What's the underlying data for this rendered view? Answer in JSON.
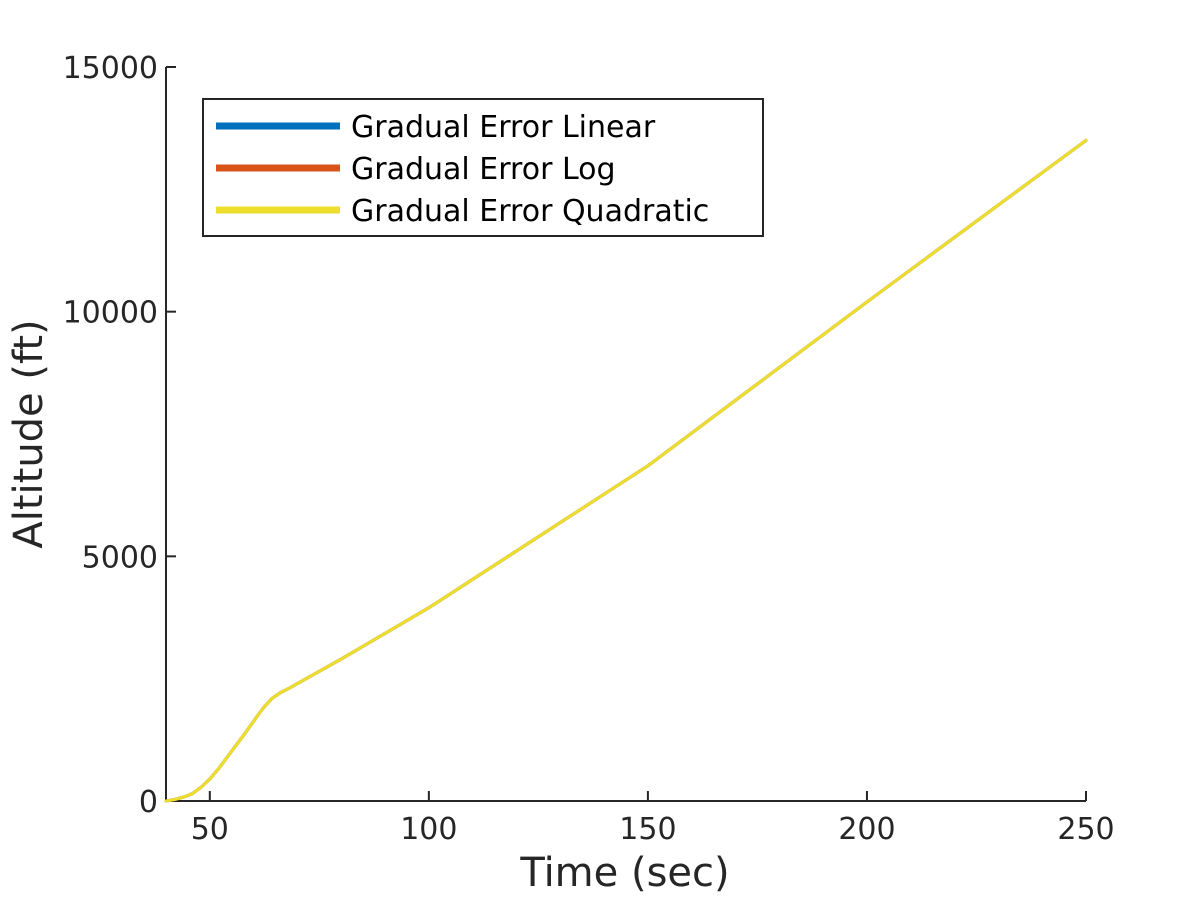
{
  "chart_data": {
    "type": "line",
    "title": "",
    "xlabel": "Time (sec)",
    "ylabel": "Altitude (ft)",
    "xlim": [
      40,
      250
    ],
    "ylim": [
      0,
      15000
    ],
    "xticks": [
      50,
      100,
      150,
      200,
      250
    ],
    "yticks": [
      0,
      5000,
      10000,
      15000
    ],
    "grid": false,
    "legend_position": "top-left",
    "series": [
      {
        "name": "Gradual Error Linear",
        "color": "#0072bd",
        "x": [
          40,
          42,
          44,
          46,
          48,
          50,
          52,
          54,
          56,
          58,
          60,
          62,
          64,
          66,
          68,
          70,
          80,
          100,
          150,
          200,
          250
        ],
        "y": [
          0,
          30,
          80,
          150,
          280,
          450,
          660,
          900,
          1140,
          1380,
          1630,
          1880,
          2080,
          2210,
          2300,
          2400,
          2900,
          3950,
          6850,
          10200,
          13500
        ]
      },
      {
        "name": "Gradual Error Log",
        "color": "#d95319",
        "x": [
          40,
          42,
          44,
          46,
          48,
          50,
          52,
          54,
          56,
          58,
          60,
          62,
          64,
          66,
          68,
          70,
          80,
          100,
          150,
          200,
          250
        ],
        "y": [
          0,
          30,
          80,
          150,
          280,
          450,
          660,
          900,
          1140,
          1380,
          1630,
          1880,
          2080,
          2210,
          2300,
          2400,
          2900,
          3950,
          6850,
          10200,
          13500
        ]
      },
      {
        "name": "Gradual Error Quadratic",
        "color": "#edde2b",
        "x": [
          40,
          42,
          44,
          46,
          48,
          50,
          52,
          54,
          56,
          58,
          60,
          62,
          64,
          66,
          68,
          70,
          80,
          100,
          150,
          200,
          250
        ],
        "y": [
          0,
          30,
          80,
          150,
          280,
          450,
          660,
          900,
          1140,
          1380,
          1630,
          1880,
          2080,
          2210,
          2300,
          2400,
          2900,
          3950,
          6850,
          10200,
          13500
        ]
      }
    ]
  }
}
